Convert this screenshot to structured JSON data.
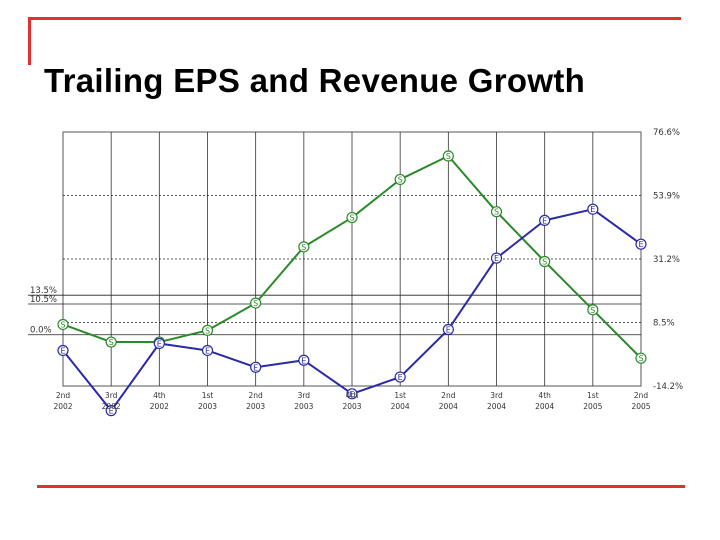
{
  "slide": {
    "title": "Trailing EPS and Revenue Growth",
    "accent_color": "#e03030"
  },
  "chart_data": {
    "type": "line",
    "title": "Trailing EPS and Revenue Growth",
    "categories": [
      [
        "2nd",
        "2002"
      ],
      [
        "3rd",
        "2002"
      ],
      [
        "4th",
        "2002"
      ],
      [
        "1st",
        "2003"
      ],
      [
        "2nd",
        "2003"
      ],
      [
        "3rd",
        "2003"
      ],
      [
        "4th",
        "2003"
      ],
      [
        "1st",
        "2004"
      ],
      [
        "2nd",
        "2004"
      ],
      [
        "3rd",
        "2004"
      ],
      [
        "4th",
        "2004"
      ],
      [
        "1st",
        "2005"
      ],
      [
        "2nd",
        "2005"
      ]
    ],
    "series": [
      {
        "marker": "S",
        "color": "#2a8a2a",
        "axis": "left",
        "values": [
          3.5,
          -2.5,
          -2.5,
          1.5,
          10.8,
          30.0,
          40.0,
          53.0,
          61.0,
          42.0,
          25.0,
          8.5,
          -8.0
        ],
        "ylim": [
          -17.5,
          69.2
        ]
      },
      {
        "marker": "E",
        "color": "#2a2aa8",
        "axis": "right",
        "values": [
          -1.5,
          -23.0,
          1.0,
          -1.5,
          -7.5,
          -5.0,
          -17.0,
          -11.0,
          6.0,
          31.5,
          45.0,
          49.0,
          36.5
        ],
        "ylim": [
          -14.2,
          76.6
        ]
      }
    ],
    "left_axis": {
      "ylim": [
        -17.5,
        69.2
      ],
      "ticks": [
        {
          "value": 13.5,
          "label": "13.5%"
        },
        {
          "value": 10.5,
          "label": "10.5%"
        },
        {
          "value": 0.0,
          "label": "0.0%"
        }
      ]
    },
    "right_axis": {
      "ylim": [
        -14.2,
        76.6
      ],
      "ticks": [
        {
          "value": 76.6,
          "label": "76.6%"
        },
        {
          "value": 53.9,
          "label": "53.9%"
        },
        {
          "value": 31.2,
          "label": "31.2%"
        },
        {
          "value": 8.5,
          "label": "8.5%"
        },
        {
          "value": -14.2,
          "label": "-14.2%"
        }
      ]
    },
    "grid": true,
    "legend": "none"
  }
}
